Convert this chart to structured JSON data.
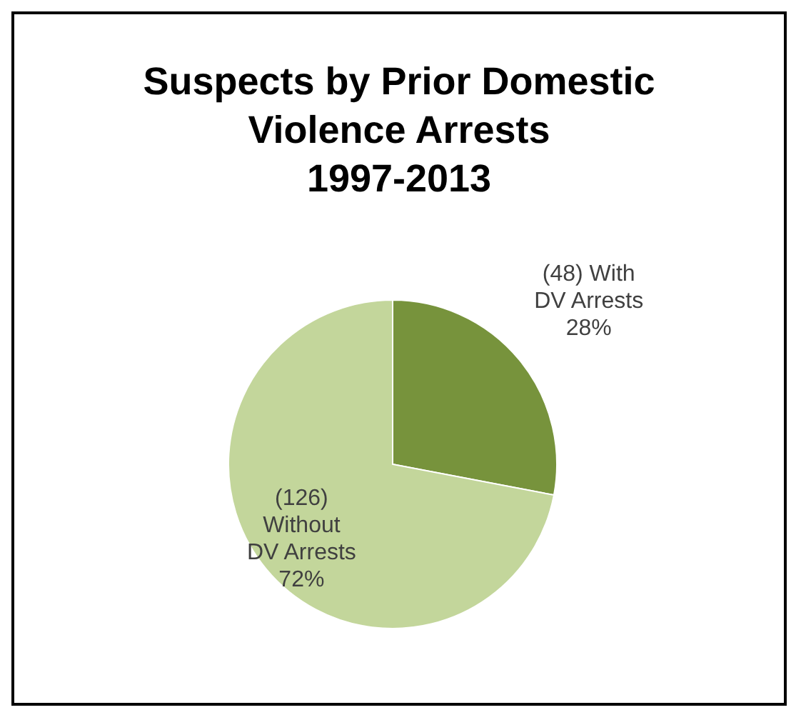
{
  "chart_data": {
    "type": "pie",
    "title": "Suspects by Prior Domestic\nViolence Arrests\n1997-2013",
    "categories": [
      "(48) With\nDV Arrests",
      "(126)\nWithout\nDV Arrests"
    ],
    "values": [
      28,
      72
    ],
    "colors": [
      "#77933c",
      "#c3d69b"
    ],
    "value_labels": [
      "28%",
      "72%"
    ],
    "legend": false
  }
}
